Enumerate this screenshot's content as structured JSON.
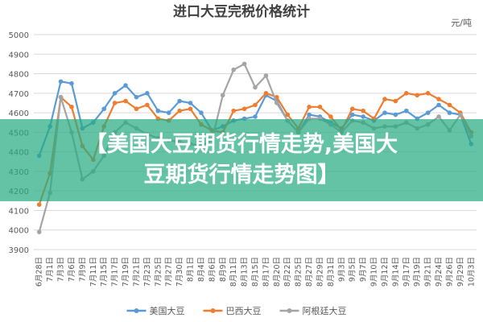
{
  "chart_data": {
    "type": "line",
    "title": "进口大豆完税价格统计",
    "unit": "元/吨",
    "categories": [
      "6月28日",
      "7月1日",
      "7月3日",
      "7月6日",
      "7月9日",
      "7月11日",
      "7月15日",
      "7月17日",
      "7月19日",
      "7月21日",
      "7月23日",
      "7月25日",
      "7月27日",
      "7月30日",
      "8月1日",
      "8月4日",
      "8月6日",
      "8月9日",
      "8月11日",
      "8月13日",
      "8月15日",
      "8月17日",
      "8月20日",
      "8月22日",
      "8月25日",
      "8月27日",
      "8月29日",
      "8月31日",
      "9月3日",
      "9月5日",
      "9月7日",
      "9月10日",
      "9月12日",
      "9月14日",
      "9月17日",
      "9月19日",
      "9月21日",
      "9月24日",
      "9月26日",
      "9月29日",
      "10月3日"
    ],
    "series": [
      {
        "name": "美国大豆",
        "color": "#5b9bd5",
        "values": [
          4380,
          4530,
          4760,
          4750,
          4520,
          4550,
          4620,
          4700,
          4740,
          4680,
          4700,
          4610,
          4600,
          4660,
          4650,
          4600,
          4510,
          4530,
          4560,
          4570,
          4580,
          4690,
          4660,
          4560,
          4500,
          4590,
          4580,
          4550,
          4520,
          4590,
          4580,
          4560,
          4600,
          4590,
          4610,
          4570,
          4600,
          4640,
          4600,
          4590,
          4440
        ]
      },
      {
        "name": "巴西大豆",
        "color": "#ed7d31",
        "values": [
          4130,
          4290,
          4680,
          4630,
          4430,
          4360,
          4530,
          4650,
          4660,
          4620,
          4640,
          4570,
          4560,
          4610,
          4620,
          4540,
          4510,
          4500,
          4610,
          4620,
          4640,
          4700,
          4680,
          4590,
          4520,
          4630,
          4630,
          4580,
          4510,
          4620,
          4610,
          4570,
          4670,
          4660,
          4700,
          4690,
          4700,
          4670,
          4640,
          4600,
          4500
        ]
      },
      {
        "name": "阿根廷大豆",
        "color": "#a5a5a5",
        "values": [
          3990,
          4190,
          4680,
          4500,
          4260,
          4300,
          4380,
          4500,
          4550,
          4520,
          4490,
          4470,
          4460,
          4450,
          4440,
          4430,
          4460,
          4690,
          4820,
          4850,
          4730,
          4790,
          4650,
          4560,
          4500,
          4570,
          4570,
          4540,
          4500,
          4560,
          4550,
          4520,
          4530,
          4530,
          4550,
          4520,
          4540,
          4580,
          4510,
          4590,
          4480
        ]
      }
    ],
    "ylim": [
      3900,
      5000
    ],
    "yticks": [
      3900,
      4000,
      4100,
      4200,
      4300,
      4400,
      4500,
      4600,
      4700,
      4800,
      4900,
      5000
    ],
    "grid": true,
    "legend": "bottom"
  },
  "banner": {
    "lines": [
      "【美国大豆期货行情走势,美国大",
      "豆期货行情走势图】"
    ]
  }
}
